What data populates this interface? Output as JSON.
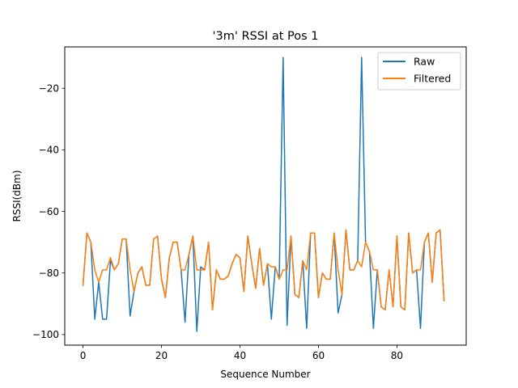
{
  "chart_data": {
    "type": "line",
    "title": "'3m' RSSI at Pos 1",
    "xlabel": "Sequence Number",
    "ylabel": "RSSI(dBm)",
    "xlim": [
      -4.65,
      97.65
    ],
    "ylim": [
      -103.45,
      -6.55
    ],
    "xticks": [
      0,
      20,
      40,
      60,
      80
    ],
    "yticks": [
      -100,
      -80,
      -60,
      -40,
      -20
    ],
    "grid": false,
    "legend_position": "top-right",
    "series": [
      {
        "name": "Raw",
        "color": "#1f77b4",
        "values": [
          -84,
          -67,
          -70,
          -95,
          -83,
          -95,
          -95,
          -76,
          -79,
          -77,
          -69,
          -69,
          -94,
          -86,
          -80,
          -78,
          -84,
          -84,
          -69,
          -68,
          -82,
          -88,
          -75,
          -70,
          -70,
          -79,
          -96,
          -74,
          -68,
          -99,
          -78,
          -79,
          -70,
          -92,
          -79,
          -82,
          -82,
          -81,
          -77,
          -74,
          -75,
          -86,
          -68,
          -77,
          -85,
          -72,
          -84,
          -77,
          -95,
          -78,
          -82,
          -10,
          -97,
          -68,
          -87,
          -88,
          -76,
          -98,
          -67,
          -67,
          -88,
          -80,
          -82,
          -82,
          -67,
          -93,
          -87,
          -66,
          -79,
          -79,
          -76,
          -10,
          -70,
          -73,
          -98,
          -79,
          -91,
          -92,
          -79,
          -91,
          -68,
          -91,
          -92,
          -67,
          -80,
          -79,
          -98,
          -70,
          -67,
          -83,
          -67,
          -66,
          -89
        ]
      },
      {
        "name": "Filtered",
        "color": "#ff7f0e",
        "values": [
          -84,
          -67,
          -70,
          -79,
          -83,
          -79,
          -79,
          -75,
          -79,
          -77,
          -69,
          -69,
          -79,
          -86,
          -80,
          -78,
          -84,
          -84,
          -69,
          -68,
          -82,
          -88,
          -75,
          -70,
          -70,
          -79,
          -79,
          -74,
          -68,
          -79,
          -79,
          -79,
          -70,
          -92,
          -79,
          -82,
          -82,
          -81,
          -77,
          -74,
          -75,
          -86,
          -68,
          -77,
          -85,
          -72,
          -84,
          -77,
          -78,
          -78,
          -82,
          -79,
          -79,
          -68,
          -87,
          -88,
          -76,
          -79,
          -67,
          -67,
          -88,
          -80,
          -82,
          -82,
          -67,
          -79,
          -87,
          -66,
          -79,
          -79,
          -76,
          -78,
          -70,
          -73,
          -79,
          -79,
          -91,
          -92,
          -79,
          -91,
          -68,
          -91,
          -92,
          -67,
          -80,
          -79,
          -79,
          -70,
          -67,
          -83,
          -67,
          -66,
          -89
        ]
      }
    ]
  }
}
